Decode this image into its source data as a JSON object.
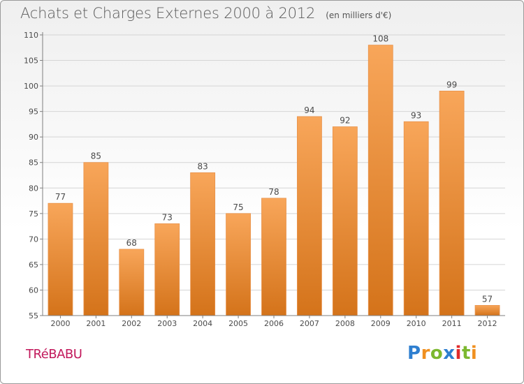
{
  "title": "Achats et Charges Externes 2000 à 2012",
  "subtitle": "(en milliers d'€)",
  "commune": "TRéBABU",
  "brand": {
    "letters": [
      "P",
      "r",
      "o",
      "x",
      "i",
      "t",
      "i"
    ],
    "colors": [
      "#2e7fd0",
      "#f09020",
      "#7cb82f",
      "#2e7fd0",
      "#e02b2b",
      "#7cb82f",
      "#f09020"
    ]
  },
  "colors": {
    "bar_top": "#f8a65a",
    "bar_bottom": "#d4731a",
    "axis": "#7f7f7f",
    "grid": "#d5d5d5",
    "label": "#4a4a4a",
    "commune": "#c2185b"
  },
  "chart_data": {
    "type": "bar",
    "categories": [
      "2000",
      "2001",
      "2002",
      "2003",
      "2004",
      "2005",
      "2006",
      "2007",
      "2008",
      "2009",
      "2010",
      "2011",
      "2012"
    ],
    "values": [
      77,
      85,
      68,
      73,
      83,
      75,
      78,
      94,
      92,
      108,
      93,
      99,
      57
    ],
    "ylim": [
      55,
      110
    ],
    "yticks": [
      55,
      60,
      65,
      70,
      75,
      80,
      85,
      90,
      95,
      100,
      105,
      110
    ],
    "grid": true,
    "xlabel": "",
    "ylabel": ""
  }
}
